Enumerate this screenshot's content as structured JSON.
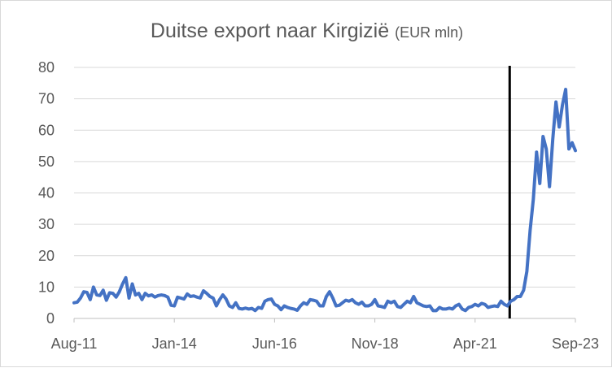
{
  "chart_data": {
    "type": "line",
    "title": "Duitse export naar Kirgizië",
    "title_unit": "(EUR mln)",
    "xlabel": "",
    "ylabel": "",
    "x_tick_labels": [
      "Aug-11",
      "Jan-14",
      "Jun-16",
      "Nov-18",
      "Apr-21",
      "Sep-23"
    ],
    "x_start": "2011-08",
    "x_end": "2023-09",
    "ylim": [
      0,
      80
    ],
    "y_ticks": [
      0,
      10,
      20,
      30,
      40,
      50,
      60,
      70,
      80
    ],
    "grid": true,
    "legend": "none",
    "line_color": "#4472c4",
    "marker_line_color": "#000000",
    "vertical_marker_month": "2022-02",
    "series": [
      {
        "values": [
          5.0,
          5.2,
          6.5,
          8.5,
          8.3,
          6.0,
          10.0,
          7.5,
          7.3,
          9.0,
          5.8,
          8.2,
          8.0,
          6.8,
          8.5,
          11.0,
          13.0,
          6.5,
          11.0,
          7.5,
          8.0,
          6.0,
          8.0,
          7.2,
          7.5,
          6.8,
          7.3,
          7.5,
          7.3,
          6.8,
          4.2,
          4.0,
          6.8,
          6.5,
          6.2,
          7.8,
          7.0,
          7.2,
          6.8,
          6.5,
          8.8,
          8.0,
          7.0,
          6.5,
          4.0,
          6.0,
          7.5,
          6.2,
          4.0,
          3.5,
          5.0,
          3.2,
          3.0,
          3.3,
          3.0,
          3.2,
          2.5,
          3.5,
          3.2,
          5.5,
          6.0,
          6.2,
          4.5,
          4.0,
          2.8,
          4.0,
          3.5,
          3.2,
          3.0,
          2.6,
          4.0,
          5.0,
          4.5,
          6.0,
          5.8,
          5.5,
          4.0,
          4.0,
          7.0,
          8.5,
          6.5,
          4.0,
          4.2,
          5.0,
          5.8,
          5.5,
          6.0,
          5.0,
          4.5,
          5.2,
          4.0,
          4.0,
          4.5,
          6.0,
          4.0,
          3.8,
          3.5,
          5.5,
          5.0,
          5.5,
          3.8,
          3.5,
          4.5,
          5.5,
          5.0,
          7.0,
          5.0,
          4.5,
          4.0,
          3.8,
          4.0,
          2.5,
          2.5,
          3.5,
          3.0,
          3.0,
          3.3,
          3.0,
          4.0,
          4.5,
          3.0,
          2.5,
          3.5,
          3.8,
          4.5,
          4.0,
          4.8,
          4.5,
          3.5,
          3.8,
          4.0,
          3.8,
          5.5,
          4.5,
          4.0,
          5.5,
          6.0,
          7.0,
          7.0,
          9.0,
          15.0,
          28.0,
          38.0,
          53.0,
          43.0,
          58.0,
          54.0,
          42.0,
          57.0,
          69.0,
          61.0,
          68.0,
          73.0,
          54.0,
          56.0,
          53.5
        ]
      }
    ]
  }
}
